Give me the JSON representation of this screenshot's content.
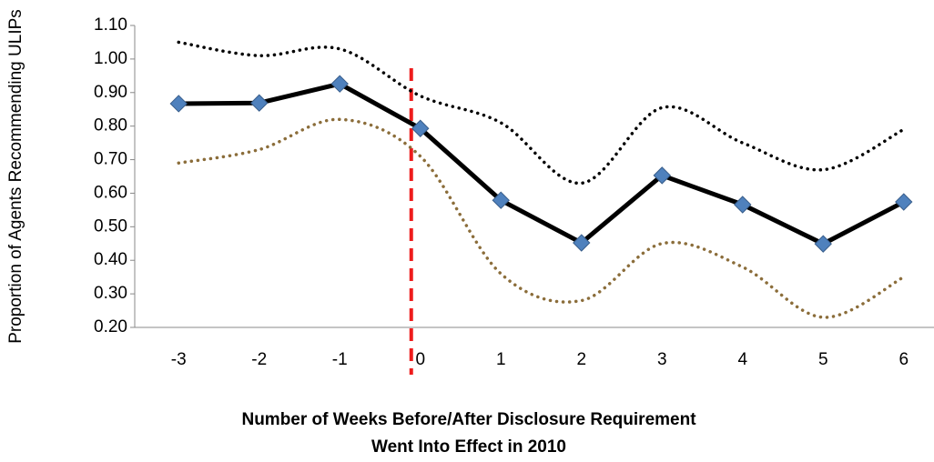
{
  "chart_data": {
    "type": "line",
    "ylabel": "Proportion of Agents Recommending ULIPs",
    "xlabel": [
      "Number of Weeks Before/After Disclosure Requirement",
      "Went Into Effect in 2010"
    ],
    "categories": [
      "-3",
      "-2",
      "-1",
      "0",
      "1",
      "2",
      "3",
      "4",
      "5",
      "6"
    ],
    "series": [
      {
        "color": "#000000",
        "style": "dotted",
        "smooth": true,
        "values": [
          1.05,
          1.01,
          1.03,
          0.89,
          0.81,
          0.63,
          0.855,
          0.75,
          0.67,
          0.79
        ]
      },
      {
        "color": "#8b6d3a",
        "style": "dotted",
        "smooth": true,
        "values": [
          0.69,
          0.73,
          0.82,
          0.71,
          0.36,
          0.28,
          0.45,
          0.38,
          0.23,
          0.35
        ]
      },
      {
        "color": "#000000",
        "style": "solid",
        "marker": "diamond",
        "marker_color": "#4f81bd",
        "values": [
          0.867,
          0.869,
          0.926,
          0.793,
          0.579,
          0.452,
          0.653,
          0.566,
          0.449,
          0.574
        ]
      }
    ],
    "ylim": [
      0.2,
      1.1
    ],
    "yticks": [
      {
        "value": 0.2,
        "label": "0.20"
      },
      {
        "value": 0.3,
        "label": "0.30"
      },
      {
        "value": 0.4,
        "label": "0.40"
      },
      {
        "value": 0.5,
        "label": "0.50"
      },
      {
        "value": 0.6,
        "label": "0.60"
      },
      {
        "value": 0.7,
        "label": "0.70"
      },
      {
        "value": 0.8,
        "label": "0.80"
      },
      {
        "value": 0.9,
        "label": "0.90"
      },
      {
        "value": 1.0,
        "label": "1.00"
      },
      {
        "value": 1.1,
        "label": "1.10"
      }
    ],
    "grid": false
  }
}
